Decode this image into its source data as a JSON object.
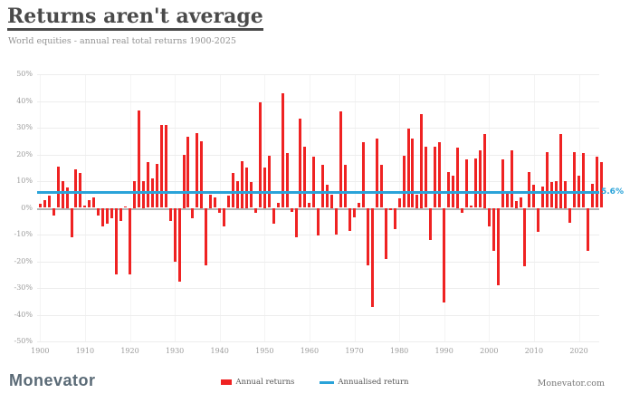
{
  "header": {
    "title": "Returns aren't average",
    "subtitle": "World equities - annual real total returns 1900-2025"
  },
  "chart_data": {
    "type": "bar",
    "title": "Returns aren't average",
    "subtitle": "World equities - annual real total returns 1900-2025",
    "series_name": "Annual returns",
    "start_year": 1900,
    "end_year": 2025,
    "values": [
      1.5,
      3,
      4.5,
      -3,
      15.5,
      10,
      7.5,
      -11,
      14.5,
      13,
      1,
      3,
      4,
      -3,
      -7,
      -6,
      -4,
      -25,
      -5,
      0.5,
      -25,
      10,
      36.5,
      10,
      17,
      11,
      16.5,
      31,
      31,
      -5,
      -20,
      -27.5,
      20,
      26.5,
      -4,
      28,
      25,
      -21.5,
      5,
      4,
      -2,
      -7,
      4.5,
      13,
      10,
      17.5,
      15,
      9.5,
      -2,
      39.5,
      15,
      19.5,
      -6,
      2,
      43,
      20.5,
      -1.5,
      -11,
      33.5,
      23,
      2,
      19,
      -10.5,
      16,
      8.5,
      5,
      -10,
      36,
      16,
      -8.5,
      -3.5,
      2,
      24.5,
      -21.5,
      -37,
      26,
      16,
      -19,
      -1,
      -8,
      3.5,
      19.5,
      29.5,
      26,
      5,
      35,
      23,
      -12,
      23,
      24.5,
      -35.5,
      13.5,
      12,
      22.5,
      -2,
      18,
      1,
      18.5,
      21.5,
      27.5,
      -7,
      -16,
      -29,
      18,
      6,
      21.5,
      2.5,
      4,
      -22,
      13.5,
      8.5,
      -9,
      8,
      21,
      9.5,
      10,
      27.5,
      10,
      -5.5,
      21,
      12,
      20.5,
      -16,
      9,
      19,
      17
    ],
    "annualised_return_pct": 5.6,
    "annualised_label": "5.6%",
    "ylim": [
      -50,
      50
    ],
    "y_ticks": [
      "50%",
      "40%",
      "30%",
      "20%",
      "10%",
      "0%",
      "-10%",
      "-20%",
      "-30%",
      "-40%",
      "-50%"
    ],
    "x_ticks": [
      "1900",
      "1910",
      "1920",
      "1930",
      "1940",
      "1950",
      "1960",
      "1970",
      "1980",
      "1990",
      "2000",
      "2010",
      "2020"
    ],
    "grid": "horizontal 10% gridlines, faint vertical decade gridlines",
    "legend_position": "bottom-center",
    "colors": {
      "bars": "#ef2222",
      "average_line": "#2aa3d9",
      "title": "#4a4a4a",
      "subtitle": "#929292",
      "tick_labels": "#9b9b9b",
      "zero_axis": "#b3b3b3"
    }
  },
  "legend": {
    "annual_label": "Annual returns",
    "annualised_label": "Annualised return"
  },
  "footer": {
    "logo": "Monevator",
    "site": "Monevator.com"
  }
}
